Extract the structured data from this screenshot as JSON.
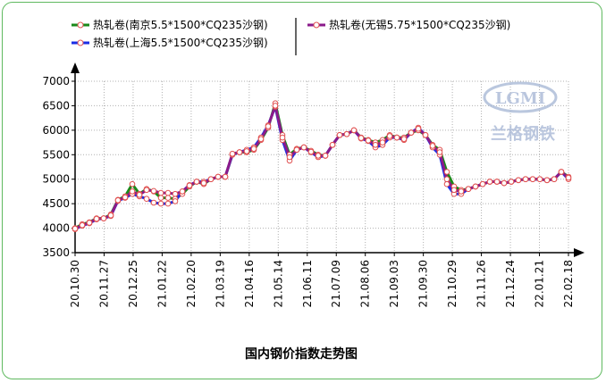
{
  "chart_data": {
    "type": "line",
    "title": "国内钢价指数走势图",
    "xlabel": "",
    "ylabel": "",
    "ylim": [
      3500,
      7000
    ],
    "y_ticks": [
      "3500",
      "4000",
      "4500",
      "5000",
      "5500",
      "6000",
      "6500",
      "7000"
    ],
    "x_tick_labels": [
      "20.10.30",
      "20.11.27",
      "20.12.25",
      "21.01.22",
      "21.02.20",
      "21.03.19",
      "21.04.16",
      "21.05.14",
      "21.06.11",
      "21.07.09",
      "21.08.06",
      "21.09.03",
      "21.09.30",
      "21.10.29",
      "21.11.26",
      "21.12.24",
      "22.01.21",
      "22.02.18"
    ],
    "grid": true,
    "legend_position": "top",
    "watermark": {
      "logo": "LGMI",
      "text": "兰格钢铁"
    },
    "x_weeks": [
      0,
      1,
      2,
      3,
      4,
      5,
      6,
      7,
      8,
      9,
      10,
      11,
      12,
      13,
      14,
      15,
      16,
      17,
      18,
      19,
      20,
      21,
      22,
      23,
      24,
      25,
      26,
      27,
      28,
      29,
      30,
      31,
      32,
      33,
      34,
      35,
      36,
      37,
      38,
      39,
      40,
      41,
      42,
      43,
      44,
      45,
      46,
      47,
      48,
      49,
      50,
      51,
      52,
      53,
      54,
      55,
      56,
      57,
      58,
      59,
      60,
      61,
      62,
      63,
      64,
      65,
      66,
      67,
      68,
      69
    ],
    "series": [
      {
        "name": "热轧卷(南京5.5*1500*CQ235沙钢)",
        "color": "#1a8a1a",
        "values": [
          4000,
          4080,
          4120,
          4200,
          4200,
          4280,
          4580,
          4650,
          4900,
          4700,
          4800,
          4750,
          4620,
          4620,
          4600,
          4700,
          4850,
          4950,
          4900,
          5000,
          5050,
          5050,
          5500,
          5550,
          5550,
          5600,
          5800,
          6050,
          6550,
          5900,
          5500,
          5620,
          5650,
          5580,
          5500,
          5480,
          5700,
          5900,
          5920,
          6000,
          5850,
          5800,
          5750,
          5800,
          5900,
          5850,
          5850,
          5950,
          6000,
          5900,
          5700,
          5600,
          5150,
          4850,
          4780,
          4800,
          4850,
          4900,
          4950,
          4950,
          4920,
          4950,
          4980,
          5000,
          5000,
          5000,
          4980,
          5000,
          5150,
          5050
        ]
      },
      {
        "name": "热轧卷(上海5.5*1500*CQ235沙钢)",
        "color": "#1a2ee6",
        "values": [
          3980,
          4050,
          4100,
          4180,
          4200,
          4250,
          4560,
          4620,
          4700,
          4650,
          4600,
          4520,
          4500,
          4500,
          4550,
          4750,
          4880,
          4950,
          4950,
          5000,
          5050,
          5050,
          5500,
          5550,
          5600,
          5650,
          5850,
          6100,
          6480,
          5800,
          5380,
          5600,
          5650,
          5550,
          5450,
          5480,
          5700,
          5900,
          5920,
          6000,
          5830,
          5780,
          5650,
          5700,
          5850,
          5850,
          5800,
          5950,
          6050,
          5900,
          5650,
          5500,
          4900,
          4700,
          4700,
          4800,
          4850,
          4900,
          4950,
          4950,
          4920,
          4950,
          4980,
          5000,
          5000,
          5000,
          4980,
          5000,
          5150,
          5000
        ]
      },
      {
        "name": "热轧卷(无锡5.75*1500*CQ235沙钢)",
        "color": "#8b1a8b",
        "values": [
          3990,
          4060,
          4110,
          4190,
          4200,
          4260,
          4570,
          4630,
          4750,
          4680,
          4780,
          4760,
          4720,
          4720,
          4700,
          4750,
          4870,
          4950,
          4920,
          5000,
          5050,
          5050,
          5520,
          5550,
          5570,
          5620,
          5820,
          6080,
          6500,
          5850,
          5450,
          5600,
          5650,
          5560,
          5480,
          5480,
          5700,
          5900,
          5920,
          6000,
          5840,
          5790,
          5700,
          5750,
          5880,
          5850,
          5820,
          5950,
          6030,
          5900,
          5680,
          5550,
          5000,
          4780,
          4750,
          4800,
          4850,
          4900,
          4950,
          4950,
          4920,
          4950,
          4980,
          5000,
          5000,
          5000,
          4980,
          5000,
          5150,
          5030
        ]
      }
    ]
  }
}
